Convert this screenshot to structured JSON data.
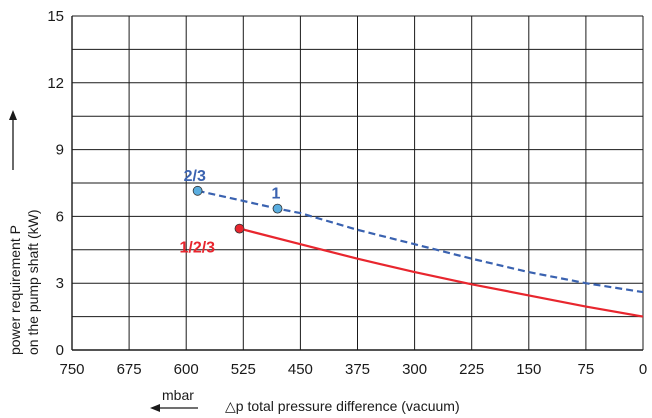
{
  "chart_data": {
    "type": "line",
    "title": "",
    "x_reversed": true,
    "xlim": [
      0,
      750
    ],
    "ylim": [
      0,
      15
    ],
    "x_ticks": [
      "750",
      "675",
      "600",
      "525",
      "450",
      "375",
      "300",
      "225",
      "150",
      "75",
      "0"
    ],
    "y_ticks": [
      "0",
      "3",
      "6",
      "9",
      "12",
      "15"
    ],
    "grid": true,
    "xlabel": "△p total pressure difference (vacuum)",
    "x_unit_label": "mbar",
    "ylabel_line1": "power requirement P",
    "ylabel_line2": "on the pump shaft (kW)",
    "series": [
      {
        "color": "#e8262e",
        "style": "solid",
        "x": [
          530,
          450,
          375,
          300,
          225,
          150,
          75,
          0
        ],
        "y": [
          5.45,
          4.75,
          4.1,
          3.5,
          2.95,
          2.45,
          1.95,
          1.5
        ],
        "marker_points": [
          {
            "x": 530,
            "y": 5.45
          }
        ]
      },
      {
        "color": "#3a62b0",
        "style": "dashed",
        "x": [
          585,
          480,
          450,
          375,
          300,
          225,
          150,
          75,
          0
        ],
        "y": [
          7.15,
          6.35,
          6.15,
          5.4,
          4.75,
          4.1,
          3.5,
          3.0,
          2.6
        ],
        "marker_points": [
          {
            "x": 585,
            "y": 7.15
          },
          {
            "x": 480,
            "y": 6.35
          }
        ]
      }
    ],
    "annotations": [
      {
        "text": "2/3",
        "x": 585,
        "y": 7.15,
        "color": "#3a62b0"
      },
      {
        "text": "1",
        "x": 480,
        "y": 6.35,
        "color": "#3a62b0"
      },
      {
        "text": "1/2/3",
        "x": 530,
        "y": 5.45,
        "color": "#e8262e"
      }
    ]
  }
}
